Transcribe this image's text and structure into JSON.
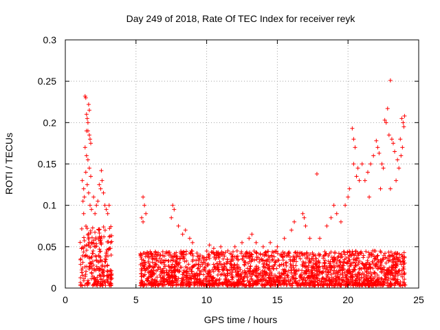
{
  "chart_data": {
    "type": "scatter",
    "title": "Day 249 of 2018, Rate Of TEC Index for receiver reyk",
    "xlabel": "GPS time / hours",
    "ylabel": "ROTI / TECUs",
    "xlim": [
      0,
      25
    ],
    "ylim": [
      0,
      0.3
    ],
    "xticks": [
      0,
      5,
      10,
      15,
      20,
      25
    ],
    "xtick_labels": [
      "0",
      "5",
      "10",
      "15",
      "20",
      "25"
    ],
    "yticks": [
      0,
      0.05,
      0.1,
      0.15,
      0.2,
      0.25,
      0.3
    ],
    "ytick_labels": [
      "0",
      "0.05",
      "0.1",
      "0.15",
      "0.2",
      "0.25",
      "0.3"
    ],
    "grid": true,
    "marker": "+",
    "color": "#ff0000",
    "series": [
      {
        "name": "ROTI",
        "points": [
          [
            1.2,
            0.13
          ],
          [
            1.3,
            0.09
          ],
          [
            1.4,
            0.232
          ],
          [
            1.45,
            0.23
          ],
          [
            1.5,
            0.21
          ],
          [
            1.55,
            0.205
          ],
          [
            1.6,
            0.2
          ],
          [
            1.6,
            0.19
          ],
          [
            1.65,
            0.222
          ],
          [
            1.7,
            0.215
          ],
          [
            1.7,
            0.185
          ],
          [
            1.75,
            0.18
          ],
          [
            1.8,
            0.175
          ],
          [
            1.5,
            0.19
          ],
          [
            1.4,
            0.17
          ],
          [
            1.3,
            0.12
          ],
          [
            1.5,
            0.16
          ],
          [
            1.6,
            0.155
          ],
          [
            1.7,
            0.145
          ],
          [
            1.8,
            0.135
          ],
          [
            1.35,
            0.11
          ],
          [
            1.55,
            0.125
          ],
          [
            1.65,
            0.115
          ],
          [
            1.75,
            0.1
          ],
          [
            1.85,
            0.095
          ],
          [
            1.25,
            0.105
          ],
          [
            1.45,
            0.14
          ],
          [
            2.0,
            0.11
          ],
          [
            2.2,
            0.1
          ],
          [
            2.4,
            0.125
          ],
          [
            2.6,
            0.13
          ],
          [
            2.55,
            0.142
          ],
          [
            2.8,
            0.1
          ],
          [
            3.0,
            0.09
          ],
          [
            2.3,
            0.105
          ],
          [
            2.7,
            0.115
          ],
          [
            2.9,
            0.095
          ],
          [
            3.1,
            0.1
          ],
          [
            2.5,
            0.12
          ],
          [
            2.1,
            0.09
          ],
          [
            5.5,
            0.11
          ],
          [
            5.6,
            0.1
          ],
          [
            5.7,
            0.09
          ],
          [
            5.4,
            0.085
          ],
          [
            5.5,
            0.08
          ],
          [
            7.6,
            0.1
          ],
          [
            7.7,
            0.095
          ],
          [
            7.5,
            0.085
          ],
          [
            8.0,
            0.075
          ],
          [
            8.3,
            0.065
          ],
          [
            8.5,
            0.07
          ],
          [
            8.8,
            0.06
          ],
          [
            9.0,
            0.055
          ],
          [
            10.2,
            0.052
          ],
          [
            10.5,
            0.048
          ],
          [
            11.0,
            0.05
          ],
          [
            11.5,
            0.045
          ],
          [
            12.0,
            0.05
          ],
          [
            12.5,
            0.055
          ],
          [
            13.0,
            0.06
          ],
          [
            13.2,
            0.065
          ],
          [
            13.5,
            0.055
          ],
          [
            14.0,
            0.05
          ],
          [
            14.5,
            0.055
          ],
          [
            15.0,
            0.05
          ],
          [
            15.5,
            0.06
          ],
          [
            16.0,
            0.07
          ],
          [
            16.2,
            0.08
          ],
          [
            16.8,
            0.09
          ],
          [
            16.9,
            0.085
          ],
          [
            17.0,
            0.075
          ],
          [
            17.3,
            0.06
          ],
          [
            17.8,
            0.138
          ],
          [
            18.0,
            0.06
          ],
          [
            18.5,
            0.075
          ],
          [
            18.8,
            0.085
          ],
          [
            19.0,
            0.1
          ],
          [
            19.2,
            0.09
          ],
          [
            19.5,
            0.08
          ],
          [
            19.8,
            0.1
          ],
          [
            20.0,
            0.11
          ],
          [
            20.1,
            0.12
          ],
          [
            20.3,
            0.193
          ],
          [
            20.4,
            0.18
          ],
          [
            20.5,
            0.17
          ],
          [
            20.4,
            0.15
          ],
          [
            20.6,
            0.135
          ],
          [
            20.7,
            0.145
          ],
          [
            20.8,
            0.13
          ],
          [
            21.0,
            0.15
          ],
          [
            21.2,
            0.13
          ],
          [
            21.4,
            0.14
          ],
          [
            21.6,
            0.15
          ],
          [
            21.8,
            0.16
          ],
          [
            22.0,
            0.178
          ],
          [
            22.1,
            0.17
          ],
          [
            22.2,
            0.163
          ],
          [
            22.4,
            0.15
          ],
          [
            22.5,
            0.145
          ],
          [
            22.6,
            0.203
          ],
          [
            22.7,
            0.2
          ],
          [
            22.8,
            0.217
          ],
          [
            22.9,
            0.185
          ],
          [
            23.0,
            0.251
          ],
          [
            23.1,
            0.18
          ],
          [
            23.2,
            0.175
          ],
          [
            23.3,
            0.165
          ],
          [
            23.5,
            0.155
          ],
          [
            23.6,
            0.145
          ],
          [
            23.7,
            0.18
          ],
          [
            23.8,
            0.205
          ],
          [
            23.9,
            0.2
          ],
          [
            24.0,
            0.208
          ],
          [
            23.95,
            0.195
          ],
          [
            23.85,
            0.17
          ],
          [
            23.75,
            0.16
          ],
          [
            23.4,
            0.13
          ],
          [
            23.0,
            0.12
          ],
          [
            22.3,
            0.12
          ],
          [
            21.5,
            0.11
          ]
        ]
      }
    ],
    "dense_segments": [
      {
        "x_start": 1.05,
        "x_end": 3.3,
        "y_low": 0.003,
        "y_high": 0.075
      },
      {
        "x_start": 5.3,
        "x_end": 24.05,
        "y_low": 0.003,
        "y_high": 0.045
      }
    ]
  }
}
